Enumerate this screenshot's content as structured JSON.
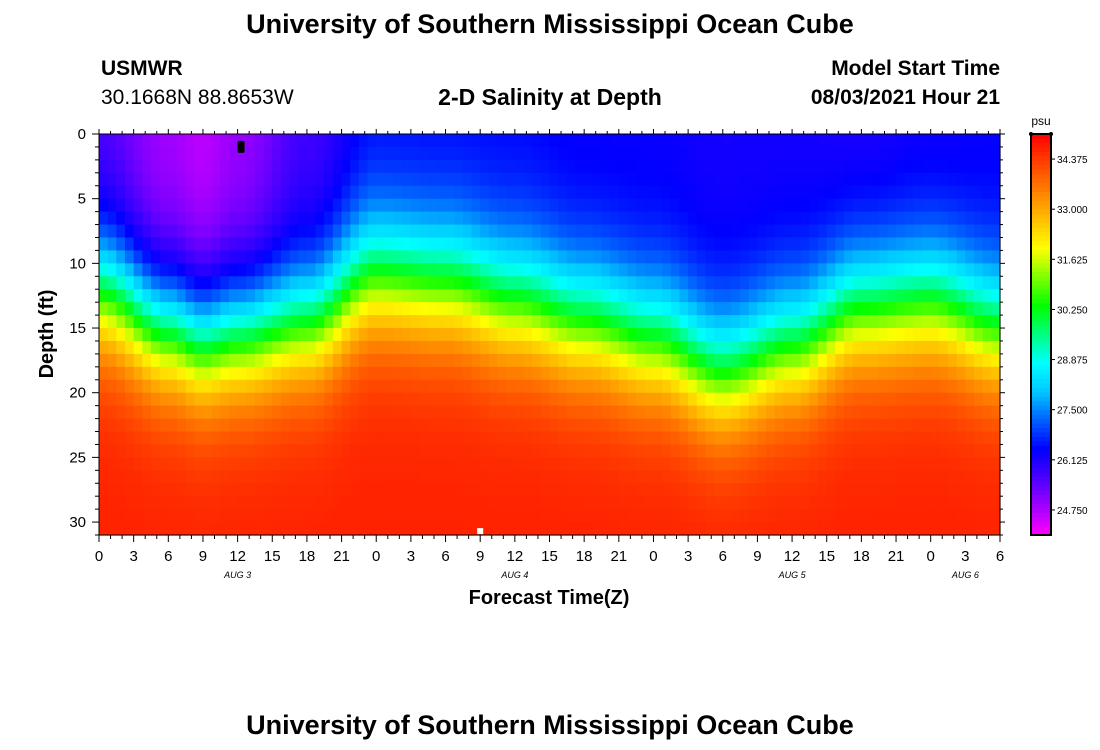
{
  "header": {
    "title": "University of Southern Mississippi Ocean Cube",
    "station": "USMWR",
    "coordinates": "30.1668N  88.8653W",
    "subtitle": "2-D Salinity at Depth",
    "model_start_label": "Model Start Time",
    "model_start_value": "08/03/2021 Hour 21"
  },
  "footer": {
    "title": "University of Southern Mississippi Ocean Cube"
  },
  "chart_data": {
    "type": "heatmap",
    "title": "2-D Salinity at Depth",
    "xlabel": "Forecast Time(Z)",
    "ylabel": "Depth (ft)",
    "x_range_hours": [
      0,
      78
    ],
    "x_ticks": [
      "0",
      "3",
      "6",
      "9",
      "12",
      "15",
      "18",
      "21",
      "0",
      "3",
      "6",
      "9",
      "12",
      "15",
      "18",
      "21",
      "0",
      "3",
      "6",
      "9",
      "12",
      "15",
      "18",
      "21",
      "0",
      "3",
      "6"
    ],
    "date_labels": [
      {
        "text": "AUG 3",
        "hour": 12
      },
      {
        "text": "AUG 4",
        "hour": 36
      },
      {
        "text": "AUG 5",
        "hour": 60
      },
      {
        "text": "AUG 6",
        "hour": 75
      }
    ],
    "y_range_ft": [
      0,
      31
    ],
    "y_ticks": [
      0,
      5,
      10,
      15,
      20,
      25,
      30
    ],
    "colorbar": {
      "unit": "psu",
      "min": 24.0,
      "max": 34.8,
      "labels": [
        "34.375",
        "33.000",
        "31.625",
        "30.250",
        "28.875",
        "27.500",
        "26.125",
        "24.750"
      ],
      "colors": [
        "#ff00ff",
        "#a000ff",
        "#4a00ff",
        "#0000ff",
        "#0060ff",
        "#00c8ff",
        "#00ffff",
        "#00ff80",
        "#00ff00",
        "#80ff00",
        "#ffff00",
        "#ffc000",
        "#ff8000",
        "#ff4000",
        "#ff0000"
      ]
    },
    "salinity_profiles": [
      {
        "hour": 0,
        "surface": 25.4,
        "halocline_ft": 12.0
      },
      {
        "hour": 6,
        "surface": 24.7,
        "halocline_ft": 15.0
      },
      {
        "hour": 9,
        "surface": 24.5,
        "halocline_ft": 16.0
      },
      {
        "hour": 12,
        "surface": 24.8,
        "halocline_ft": 15.5
      },
      {
        "hour": 18,
        "surface": 25.6,
        "halocline_ft": 14.5
      },
      {
        "hour": 24,
        "surface": 26.3,
        "halocline_ft": 11.0
      },
      {
        "hour": 30,
        "surface": 26.3,
        "halocline_ft": 11.5
      },
      {
        "hour": 36,
        "surface": 26.3,
        "halocline_ft": 13.0
      },
      {
        "hour": 42,
        "surface": 26.2,
        "halocline_ft": 14.5
      },
      {
        "hour": 48,
        "surface": 26.2,
        "halocline_ft": 16.0
      },
      {
        "hour": 54,
        "surface": 26.1,
        "halocline_ft": 18.5
      },
      {
        "hour": 60,
        "surface": 26.1,
        "halocline_ft": 16.5
      },
      {
        "hour": 66,
        "surface": 26.0,
        "halocline_ft": 13.5
      },
      {
        "hour": 72,
        "surface": 26.1,
        "halocline_ft": 13.0
      },
      {
        "hour": 78,
        "surface": 26.2,
        "halocline_ft": 15.0
      }
    ],
    "bottom_salinity": 34.4,
    "markers": [
      {
        "name": "black-marker",
        "hour": 12.3,
        "depth_ft": 1.0
      },
      {
        "name": "white-marker",
        "hour": 33.0,
        "depth_ft": 30.7
      }
    ]
  }
}
